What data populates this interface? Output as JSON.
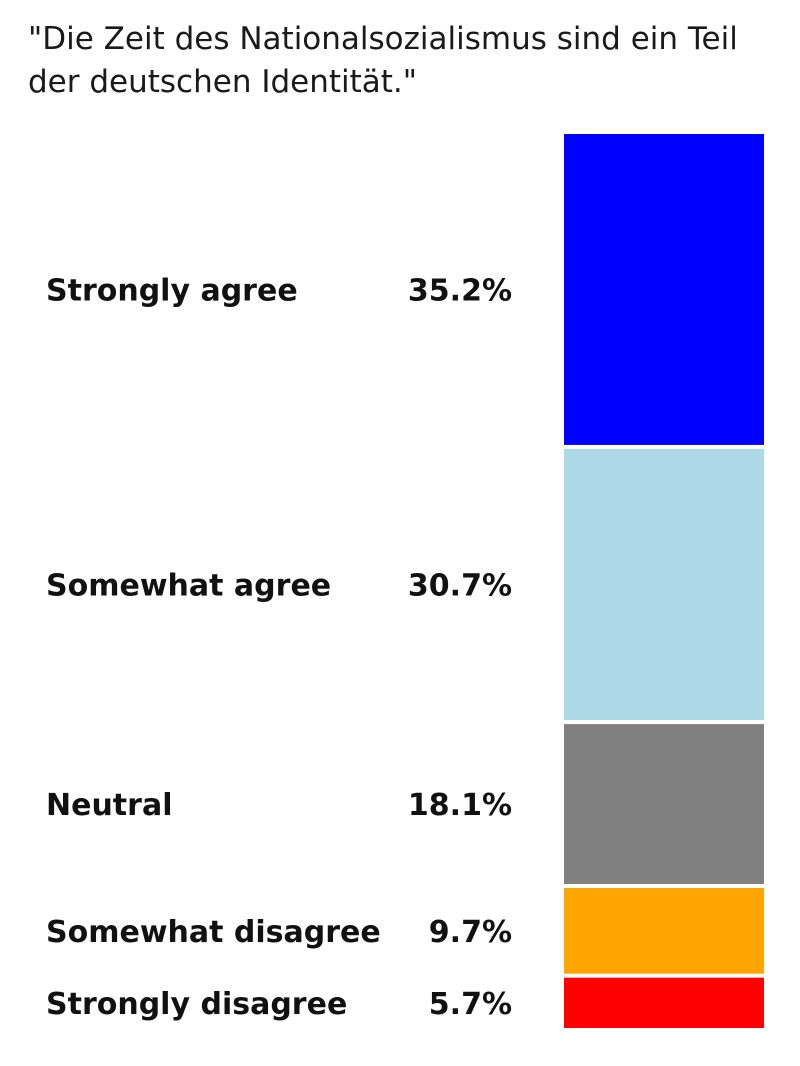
{
  "title": "\"Die Zeit des Nationalsozialismus sind ein Teil der deutschen Identität.\"",
  "chart_data": {
    "type": "bar",
    "orientation": "stacked-vertical",
    "title": "\"Die Zeit des Nationalsozialismus sind ein Teil der deutschen Identität.\"",
    "xlabel": "",
    "ylabel": "",
    "grid": false,
    "legend": "none",
    "categories": [
      "Strongly agree",
      "Somewhat agree",
      "Neutral",
      "Somewhat disagree",
      "Strongly disagree"
    ],
    "values": [
      35.2,
      30.7,
      18.1,
      9.7,
      5.7
    ],
    "value_labels": [
      "35.2%",
      "30.7%",
      "18.1%",
      "9.7%",
      "5.7%"
    ],
    "colors": [
      "#0000ff",
      "#add8e6",
      "#808080",
      "#ffa500",
      "#ff0000"
    ]
  }
}
